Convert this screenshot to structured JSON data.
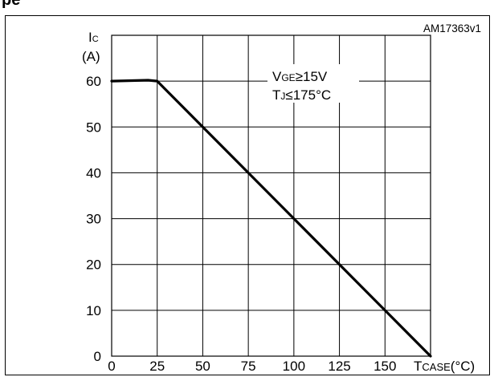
{
  "header": {
    "title_fragment": "pe"
  },
  "chart_data": {
    "type": "line",
    "figure_code": "AM17363v1",
    "ylabel": {
      "main": "I",
      "sub": "C",
      "unit": "(A)"
    },
    "xlabel": {
      "main": "T",
      "sub": "CASE",
      "unit": "(°C)"
    },
    "annotations": [
      {
        "main": "V",
        "sub": "GE",
        "rest": "≥15V"
      },
      {
        "main": "T",
        "sub": "J",
        "rest": "≤175°C"
      }
    ],
    "xlim": [
      0,
      175
    ],
    "ylim": [
      0,
      70
    ],
    "x_ticks": [
      0,
      25,
      50,
      75,
      100,
      125,
      150
    ],
    "y_ticks": [
      0,
      10,
      20,
      30,
      40,
      50,
      60
    ],
    "x_tick_labels": [
      "0",
      "25",
      "50",
      "75",
      "100",
      "125",
      "150"
    ],
    "y_tick_labels": [
      "0",
      "10",
      "20",
      "30",
      "40",
      "50",
      "60"
    ],
    "grid": true,
    "series": [
      {
        "x": [
          0,
          20,
          25,
          50,
          75,
          100,
          125,
          150,
          175
        ],
        "y": [
          60,
          60.2,
          60,
          50,
          40,
          30,
          20,
          10,
          0
        ]
      }
    ]
  }
}
